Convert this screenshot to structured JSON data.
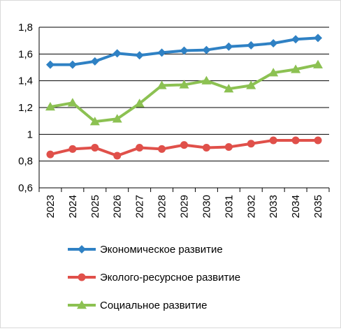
{
  "chart_data": {
    "type": "line",
    "title": "",
    "xlabel": "",
    "ylabel": "",
    "categories": [
      "2023",
      "2024",
      "2025",
      "2026",
      "2027",
      "2028",
      "2029",
      "2030",
      "2031",
      "2032",
      "2033",
      "2034",
      "2035"
    ],
    "ylim": [
      0.6,
      1.8
    ],
    "y_ticks": [
      "0,6",
      "0,8",
      "1",
      "1,2",
      "1,4",
      "1,6",
      "1,8"
    ],
    "grid": true,
    "legend_position": "bottom",
    "series": [
      {
        "name": "Экономическое развитие",
        "color": "#2f81c4",
        "marker": "diamond",
        "values": [
          1.52,
          1.52,
          1.545,
          1.605,
          1.59,
          1.61,
          1.625,
          1.63,
          1.655,
          1.665,
          1.68,
          1.71,
          1.72
        ]
      },
      {
        "name": "Эколого-ресурсное развитие",
        "color": "#e0504a",
        "marker": "circle",
        "values": [
          0.85,
          0.89,
          0.9,
          0.84,
          0.9,
          0.89,
          0.92,
          0.9,
          0.905,
          0.93,
          0.955,
          0.955,
          0.955
        ]
      },
      {
        "name": "Социальное развитие",
        "color": "#8cc152",
        "marker": "triangle",
        "values": [
          1.205,
          1.235,
          1.095,
          1.115,
          1.23,
          1.365,
          1.37,
          1.4,
          1.34,
          1.365,
          1.46,
          1.485,
          1.52
        ]
      }
    ]
  }
}
